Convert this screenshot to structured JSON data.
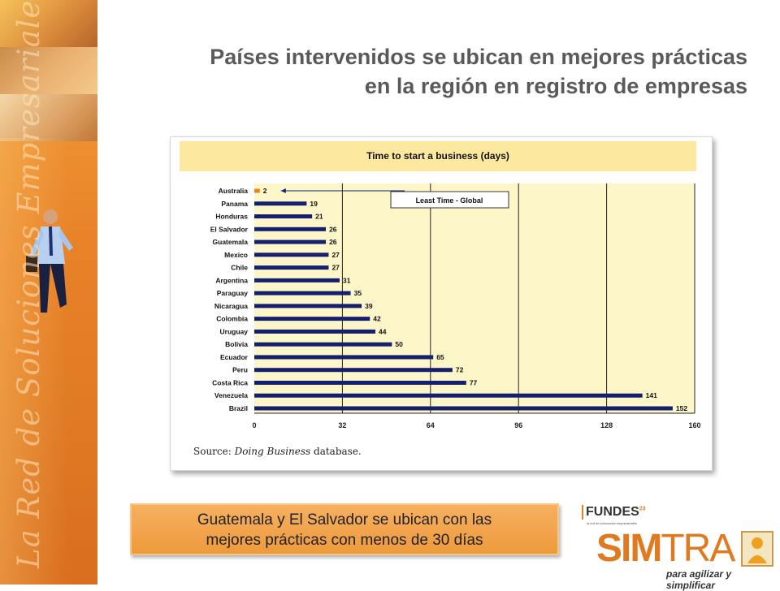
{
  "slide": {
    "title_line1": "Países intervenidos se ubican en mejores prácticas",
    "title_line2": "en la región en registro de empresas",
    "sidebar_text": "La Red de Soluciones Empresariales",
    "callout_line1": "Guatemala y El Salvador se ubican con las",
    "callout_line2": "mejores prácticas con menos de 30 días"
  },
  "chart_data": {
    "type": "bar",
    "orientation": "horizontal",
    "title": "Time to start a business (days)",
    "categories": [
      "Australia",
      "Panama",
      "Honduras",
      "El Salvador",
      "Guatemala",
      "Mexico",
      "Chile",
      "Argentina",
      "Paraguay",
      "Nicaragua",
      "Colombia",
      "Uruguay",
      "Bolivia",
      "Ecuador",
      "Peru",
      "Costa Rica",
      "Venezuela",
      "Brazil"
    ],
    "values": [
      2,
      19,
      21,
      26,
      26,
      27,
      27,
      31,
      35,
      39,
      42,
      44,
      50,
      65,
      72,
      77,
      141,
      152
    ],
    "highlight_category": "Australia",
    "xlim": [
      0,
      160
    ],
    "xticks": [
      0,
      32,
      64,
      96,
      128,
      160
    ],
    "annotation": "Least Time - Global",
    "source_prefix": "Source: ",
    "source_italic": "Doing Business",
    "source_suffix": " database.",
    "colors": {
      "bar": "#14206e",
      "highlight": "#f08020",
      "plot_bg": "#fdf6c8",
      "banner": "#fde8a0"
    }
  },
  "logo": {
    "fundes": "FUNDES",
    "fundes_sup": "23",
    "fundes_sub": "la red de soluciones empresariales",
    "simtra_bold": "SIM",
    "simtra_light": "TRA",
    "tagline": "para agilizar y simplificar"
  }
}
